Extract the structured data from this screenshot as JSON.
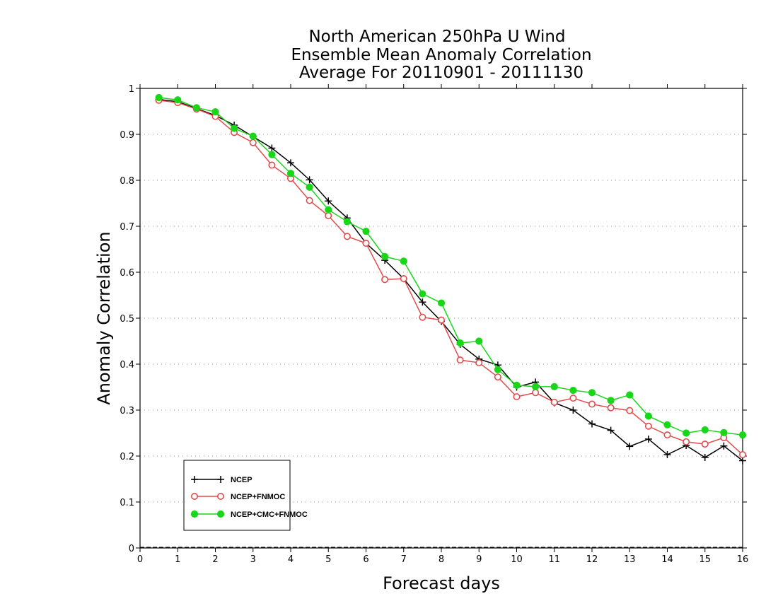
{
  "chart_data": {
    "type": "line",
    "title_lines": [
      "North American 250hPa U Wind",
      "Ensemble Mean Anomaly Correlation",
      "Average For 20110901 - 20111130"
    ],
    "xlabel": "Forecast days",
    "ylabel": "Anomaly Correlation",
    "xlim": [
      0,
      16
    ],
    "ylim": [
      0,
      1
    ],
    "x_ticks": [
      "0",
      "1",
      "2",
      "3",
      "4",
      "5",
      "6",
      "7",
      "8",
      "9",
      "10",
      "11",
      "12",
      "13",
      "14",
      "15",
      "16"
    ],
    "y_ticks": [
      "0",
      "0.1",
      "0.2",
      "0.3",
      "0.4",
      "0.5",
      "0.6",
      "0.7",
      "0.8",
      "0.9",
      "1"
    ],
    "grid": "horizontal dotted",
    "legend_position": "bottom-left",
    "x": [
      0.5,
      1,
      1.5,
      2,
      2.5,
      3,
      3.5,
      4,
      4.5,
      5,
      5.5,
      6,
      6.5,
      7,
      7.5,
      8,
      8.5,
      9,
      9.5,
      10,
      10.5,
      11,
      11.5,
      12,
      12.5,
      13,
      13.5,
      14,
      14.5,
      15,
      15.5,
      16
    ],
    "series": [
      {
        "name": "NCEP",
        "color": "#000000",
        "marker": "plus",
        "values": [
          0.976,
          0.971,
          0.956,
          0.941,
          0.92,
          0.895,
          0.87,
          0.838,
          0.801,
          0.755,
          0.718,
          0.663,
          0.626,
          0.586,
          0.535,
          0.493,
          0.443,
          0.411,
          0.398,
          0.35,
          0.361,
          0.316,
          0.3,
          0.27,
          0.256,
          0.221,
          0.237,
          0.203,
          0.223,
          0.197,
          0.222,
          0.19
        ]
      },
      {
        "name": "NCEP+FNMOC",
        "color": "#e24b4b",
        "marker": "open-circle",
        "values": [
          0.974,
          0.969,
          0.955,
          0.939,
          0.904,
          0.882,
          0.833,
          0.804,
          0.756,
          0.723,
          0.678,
          0.663,
          0.584,
          0.586,
          0.502,
          0.496,
          0.409,
          0.403,
          0.372,
          0.329,
          0.338,
          0.317,
          0.326,
          0.313,
          0.305,
          0.299,
          0.265,
          0.246,
          0.231,
          0.226,
          0.24,
          0.203
        ]
      },
      {
        "name": "NCEP+CMC+FNMOC",
        "color": "#19d619",
        "marker": "filled-circle",
        "values": [
          0.98,
          0.975,
          0.958,
          0.949,
          0.913,
          0.896,
          0.856,
          0.815,
          0.785,
          0.736,
          0.71,
          0.689,
          0.634,
          0.624,
          0.553,
          0.533,
          0.446,
          0.45,
          0.388,
          0.354,
          0.351,
          0.351,
          0.343,
          0.338,
          0.321,
          0.333,
          0.287,
          0.268,
          0.25,
          0.257,
          0.251,
          0.246
        ]
      }
    ]
  }
}
